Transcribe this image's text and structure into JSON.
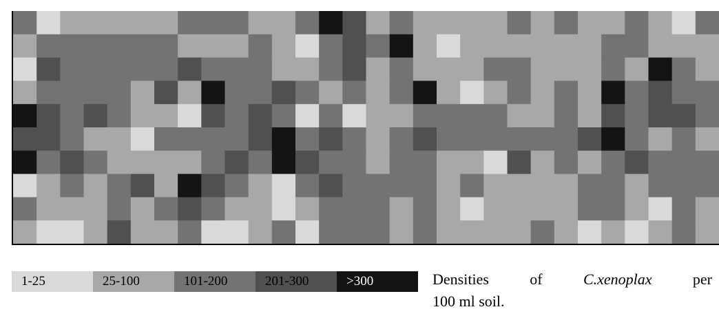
{
  "chart_data": {
    "type": "heatmap",
    "title": "",
    "xlabel": "",
    "ylabel": "",
    "rows": 10,
    "cols": 30,
    "legend": [
      {
        "label": "1-25",
        "class": 0,
        "color": "#d9d9d9"
      },
      {
        "label": "25-100",
        "class": 1,
        "color": "#a8a8a8"
      },
      {
        "label": "101-200",
        "class": 2,
        "color": "#737373"
      },
      {
        "label": "201-300",
        "class": 3,
        "color": "#505050"
      },
      {
        "label": ">300",
        "class": 4,
        "color": "#141414"
      }
    ],
    "grid": [
      [
        2,
        0,
        1,
        1,
        1,
        1,
        1,
        2,
        2,
        2,
        1,
        1,
        2,
        4,
        3,
        1,
        2,
        1,
        1,
        1,
        1,
        2,
        1,
        2,
        1,
        1,
        2,
        1,
        0,
        2
      ],
      [
        1,
        2,
        2,
        2,
        2,
        2,
        2,
        1,
        1,
        1,
        2,
        1,
        0,
        2,
        3,
        2,
        4,
        1,
        0,
        1,
        1,
        1,
        1,
        1,
        1,
        2,
        2,
        1,
        1,
        1
      ],
      [
        0,
        3,
        2,
        2,
        2,
        2,
        2,
        3,
        2,
        2,
        2,
        1,
        1,
        2,
        3,
        1,
        2,
        1,
        1,
        1,
        2,
        2,
        1,
        1,
        1,
        2,
        1,
        4,
        2,
        1
      ],
      [
        1,
        2,
        2,
        2,
        2,
        1,
        3,
        1,
        4,
        2,
        2,
        3,
        2,
        1,
        2,
        1,
        2,
        4,
        1,
        0,
        1,
        2,
        1,
        2,
        1,
        4,
        2,
        3,
        2,
        2
      ],
      [
        4,
        3,
        2,
        3,
        2,
        1,
        1,
        0,
        3,
        2,
        3,
        2,
        0,
        2,
        0,
        1,
        1,
        2,
        2,
        2,
        2,
        1,
        1,
        2,
        1,
        3,
        2,
        3,
        3,
        2
      ],
      [
        3,
        3,
        2,
        1,
        1,
        0,
        2,
        2,
        2,
        2,
        3,
        4,
        2,
        3,
        2,
        1,
        2,
        3,
        2,
        2,
        2,
        2,
        2,
        2,
        3,
        4,
        2,
        1,
        2,
        1
      ],
      [
        4,
        2,
        3,
        2,
        1,
        1,
        1,
        1,
        2,
        3,
        2,
        4,
        3,
        2,
        2,
        1,
        2,
        2,
        1,
        1,
        0,
        3,
        1,
        2,
        1,
        2,
        3,
        2,
        2,
        2
      ],
      [
        0,
        1,
        2,
        1,
        2,
        3,
        1,
        4,
        3,
        2,
        1,
        0,
        2,
        3,
        2,
        2,
        2,
        2,
        1,
        2,
        1,
        1,
        1,
        1,
        2,
        2,
        1,
        2,
        2,
        2
      ],
      [
        2,
        1,
        1,
        1,
        2,
        1,
        2,
        3,
        2,
        1,
        1,
        0,
        1,
        2,
        2,
        2,
        1,
        2,
        1,
        0,
        1,
        1,
        1,
        1,
        2,
        2,
        1,
        0,
        2,
        1
      ],
      [
        1,
        0,
        0,
        1,
        3,
        1,
        1,
        2,
        0,
        0,
        1,
        2,
        0,
        2,
        2,
        2,
        1,
        2,
        1,
        1,
        1,
        1,
        2,
        1,
        0,
        1,
        0,
        1,
        2,
        1
      ]
    ]
  },
  "caption": {
    "line1_parts": [
      "Densities",
      "of",
      "C.xenoplax",
      "per"
    ],
    "line2": "100 ml soil."
  }
}
